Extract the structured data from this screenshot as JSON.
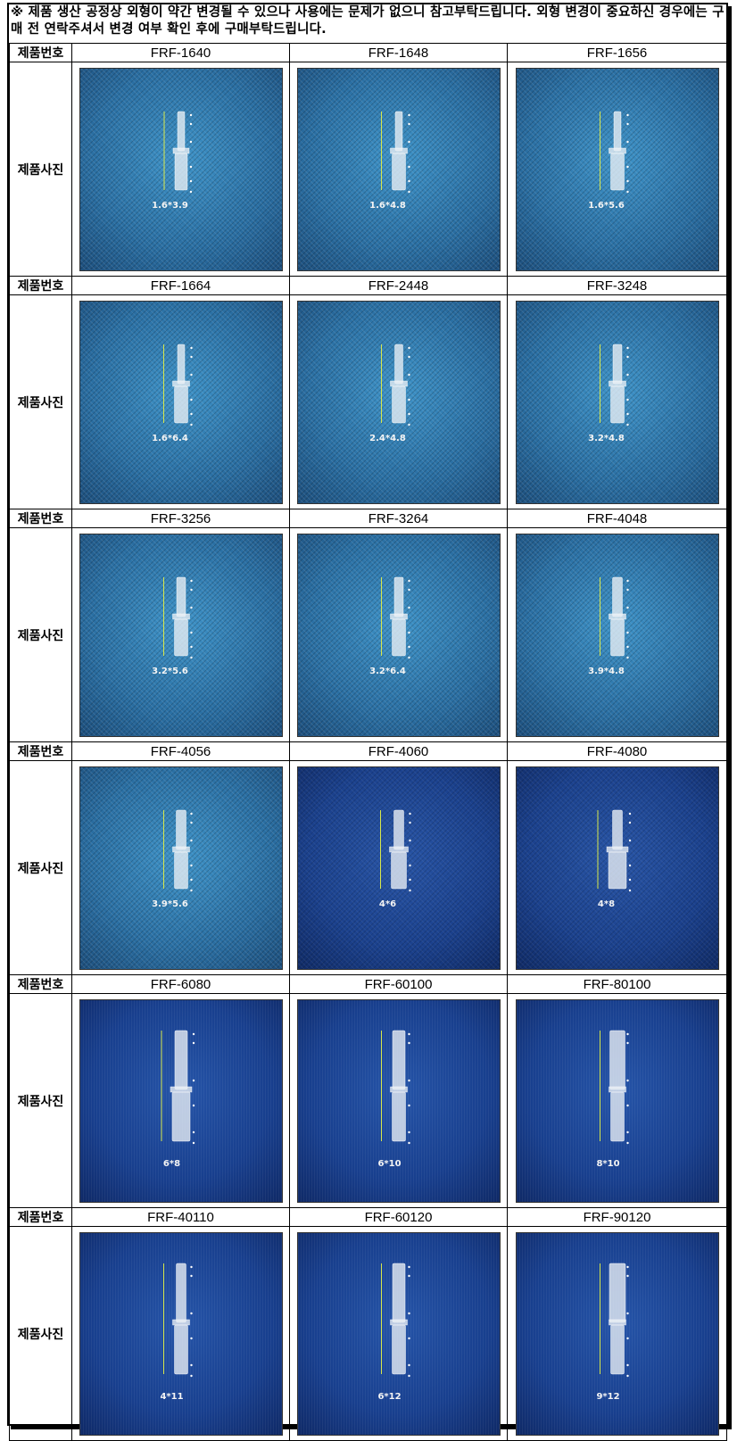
{
  "notice": "※ 제품 생산 공정상 외형이 약간 변경될 수 있으나 사용에는 문제가 없으니 참고부탁드립니다. 외형 변경이 중요하신 경우에는 구매 전 연락주셔서 변경 여부 확인 후에 구매부탁드립니다.",
  "labels": {
    "code": "제품번호",
    "photo": "제품사진"
  },
  "rows": [
    {
      "items": [
        {
          "code": "FRF-1640",
          "size": "1.6*3.9",
          "bg": "diamond"
        },
        {
          "code": "FRF-1648",
          "size": "1.6*4.8",
          "bg": "diamond"
        },
        {
          "code": "FRF-1656",
          "size": "1.6*5.6",
          "bg": "diamond"
        }
      ]
    },
    {
      "items": [
        {
          "code": "FRF-1664",
          "size": "1.6*6.4",
          "bg": "diamond"
        },
        {
          "code": "FRF-2448",
          "size": "2.4*4.8",
          "bg": "diamond"
        },
        {
          "code": "FRF-3248",
          "size": "3.2*4.8",
          "bg": "diamond"
        }
      ]
    },
    {
      "items": [
        {
          "code": "FRF-3256",
          "size": "3.2*5.6",
          "bg": "diamond"
        },
        {
          "code": "FRF-3264",
          "size": "3.2*6.4",
          "bg": "diamond"
        },
        {
          "code": "FRF-4048",
          "size": "3.9*4.8",
          "bg": "diamond"
        }
      ]
    },
    {
      "items": [
        {
          "code": "FRF-4056",
          "size": "3.9*5.6",
          "bg": "diamond"
        },
        {
          "code": "FRF-4060",
          "size": "4*6",
          "bg": "navy"
        },
        {
          "code": "FRF-4080",
          "size": "4*8",
          "bg": "navy"
        }
      ]
    },
    {
      "items": [
        {
          "code": "FRF-6080",
          "size": "6*8",
          "bg": "navy2"
        },
        {
          "code": "FRF-60100",
          "size": "6*10",
          "bg": "navy2"
        },
        {
          "code": "FRF-80100",
          "size": "8*10",
          "bg": "navy2"
        }
      ]
    },
    {
      "items": [
        {
          "code": "FRF-40110",
          "size": "4*11",
          "bg": "navy2"
        },
        {
          "code": "FRF-60120",
          "size": "6*12",
          "bg": "navy2"
        },
        {
          "code": "FRF-90120",
          "size": "9*12",
          "bg": "navy2"
        }
      ]
    }
  ]
}
